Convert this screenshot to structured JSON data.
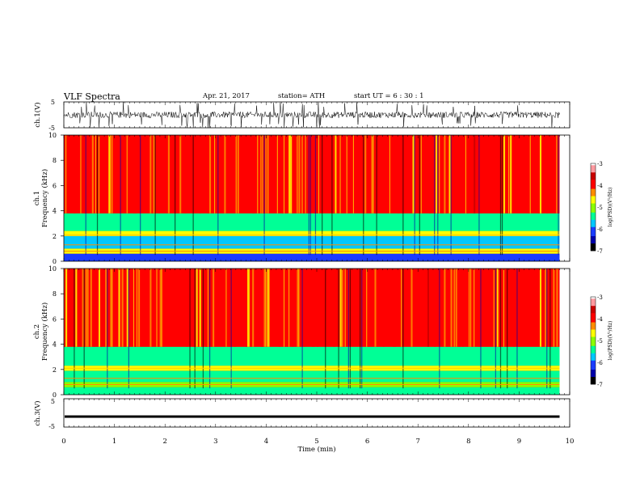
{
  "header": {
    "title": "VLF  Spectra",
    "date": "Apr. 21, 2017",
    "station": "station= ATH",
    "start": "start  UT  =   6  : 30 : 1"
  },
  "colors": {
    "colormap": [
      "#000000",
      "#0000aa",
      "#1a3cff",
      "#00c8ff",
      "#00ff96",
      "#8cff00",
      "#ffff00",
      "#ff8c00",
      "#ff0000",
      "#c80000",
      "#ff9aa0",
      "#ffffff"
    ]
  },
  "chart_data": [
    {
      "type": "line",
      "panel": "ch1-waveform",
      "ylabel": "ch.1(V)",
      "ylim": [
        -5,
        5
      ],
      "yticks": [
        "5",
        "-5"
      ],
      "xlim": [
        0,
        10
      ],
      "series": [
        {
          "description_free": true,
          "envelope_typical": [
            -1.5,
            1.5
          ],
          "spike_max": 5
        }
      ]
    },
    {
      "type": "heatmap",
      "panel": "ch1-spectrogram",
      "label": "ch.1",
      "ylabel": "Frequency  (kHz)",
      "ylim": [
        0,
        10
      ],
      "yticks": [
        "0",
        "2",
        "4",
        "6",
        "8",
        "10"
      ],
      "xlim": [
        0,
        10
      ],
      "band_levels": [
        {
          "f_from": 0,
          "f_to": 0.6,
          "level": -6
        },
        {
          "f_from": 0.6,
          "f_to": 1.0,
          "level": -4.5
        },
        {
          "f_from": 1.0,
          "f_to": 2.0,
          "level": -5.6
        },
        {
          "f_from": 2.0,
          "f_to": 2.4,
          "level": -4.8
        },
        {
          "f_from": 2.4,
          "f_to": 3.8,
          "level": -5.3
        },
        {
          "f_from": 3.8,
          "f_to": 10,
          "level": -3.8
        }
      ]
    },
    {
      "type": "heatmap",
      "panel": "ch2-spectrogram",
      "label": "ch.2",
      "ylabel": "Frequency  (kHz)",
      "ylim": [
        0,
        10
      ],
      "yticks": [
        "0",
        "2",
        "4",
        "6",
        "8",
        "10"
      ],
      "xlim": [
        0,
        10
      ],
      "band_levels": [
        {
          "f_from": 0,
          "f_to": 0.6,
          "level": -5.5
        },
        {
          "f_from": 0.6,
          "f_to": 1.0,
          "level": -5.0
        },
        {
          "f_from": 1.0,
          "f_to": 1.9,
          "level": -5.4
        },
        {
          "f_from": 1.9,
          "f_to": 2.3,
          "level": -4.5
        },
        {
          "f_from": 2.3,
          "f_to": 3.8,
          "level": -5.4
        },
        {
          "f_from": 3.8,
          "f_to": 10,
          "level": -3.8
        }
      ]
    },
    {
      "type": "line",
      "panel": "ch3-waveform",
      "ylabel": "ch.3(V)",
      "ylim": [
        -5,
        5
      ],
      "yticks": [
        "5",
        "-5"
      ],
      "xlim": [
        0,
        10
      ],
      "series": [
        {
          "constant_level": -1.3
        }
      ]
    }
  ],
  "colorbar": {
    "label": "log(PSD)(V²/Hz)",
    "range": [
      -7,
      -3
    ],
    "ticks": [
      "-3",
      "-4",
      "-5",
      "-6",
      "-7"
    ]
  },
  "xaxis": {
    "label": "Time  (min)",
    "ticks": [
      "0",
      "1",
      "2",
      "3",
      "4",
      "5",
      "6",
      "7",
      "8",
      "9",
      "10"
    ]
  }
}
